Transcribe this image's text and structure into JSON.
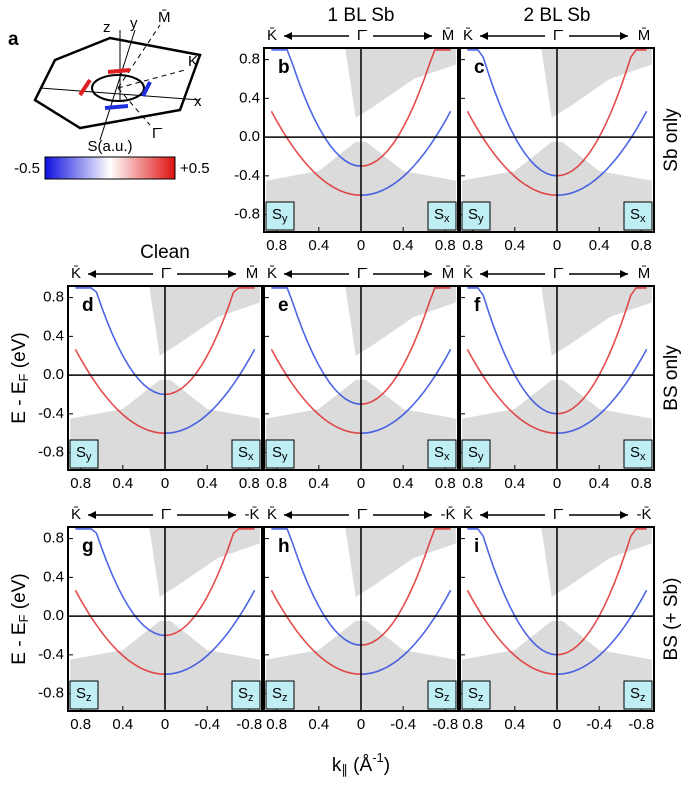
{
  "schematic": {
    "letter": "a",
    "axes": [
      "z",
      "y",
      "x"
    ],
    "points": [
      "M̄",
      "K̄",
      "Γ̄"
    ]
  },
  "legend": {
    "title": "S(a.u.)",
    "min": "-0.5",
    "max": "+0.5"
  },
  "column_titles": [
    "1 BL Sb",
    "2 BL Sb"
  ],
  "clean_label": "Clean",
  "row_labels": [
    "Sb only",
    "BS only",
    "BS (+ Sb)"
  ],
  "y_axis_label": {
    "main": "E - E",
    "sub": "F",
    "unit": " (eV)"
  },
  "x_axis_label": {
    "main": "k",
    "sub": "∥",
    "unit": " (Å",
    "sup": "-1",
    "close": ")"
  },
  "yticks": [
    "0.8",
    "0.4",
    "0.0",
    "-0.4",
    "-0.8"
  ],
  "xticks": [
    "0.8",
    "0.4",
    "0",
    "0.4",
    "0.8"
  ],
  "xticks_z": [
    "0.8",
    "0.4",
    "0",
    "-0.4",
    "-0.8"
  ],
  "k_path_m": [
    "K̄",
    "Γ̄",
    "M̄"
  ],
  "k_path_k": [
    "K̄",
    "Γ̄",
    "-K̄"
  ],
  "spin": {
    "base": "S",
    "x": "x",
    "y": "y",
    "z": "z"
  },
  "panels": [
    "b",
    "c",
    "d",
    "e",
    "f",
    "g",
    "h",
    "i"
  ]
}
